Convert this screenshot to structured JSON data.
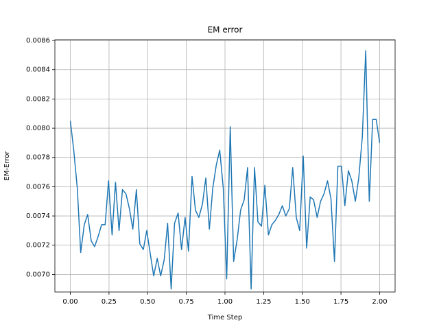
{
  "chart_data": {
    "type": "line",
    "title": "EM error",
    "x_label": "Time Step",
    "y_label": "EM-Error",
    "x": [
      0,
      0.022,
      0.045,
      0.067,
      0.09,
      0.112,
      0.135,
      0.157,
      0.18,
      0.202,
      0.225,
      0.247,
      0.27,
      0.292,
      0.315,
      0.337,
      0.36,
      0.382,
      0.404,
      0.427,
      0.449,
      0.472,
      0.494,
      0.517,
      0.539,
      0.562,
      0.584,
      0.607,
      0.629,
      0.652,
      0.674,
      0.697,
      0.719,
      0.742,
      0.764,
      0.787,
      0.809,
      0.831,
      0.854,
      0.876,
      0.899,
      0.921,
      0.944,
      0.966,
      0.989,
      1.011,
      1.034,
      1.056,
      1.079,
      1.101,
      1.124,
      1.146,
      1.169,
      1.191,
      1.213,
      1.236,
      1.258,
      1.281,
      1.303,
      1.326,
      1.348,
      1.371,
      1.393,
      1.416,
      1.438,
      1.461,
      1.483,
      1.506,
      1.528,
      1.551,
      1.573,
      1.596,
      1.618,
      1.64,
      1.663,
      1.685,
      1.708,
      1.73,
      1.753,
      1.775,
      1.798,
      1.82,
      1.843,
      1.865,
      1.888,
      1.91,
      1.933,
      1.955,
      1.978,
      2.0
    ],
    "series": [
      {
        "name": "EM error",
        "color": "#1f77b4",
        "values": [
          0.00805,
          0.00785,
          0.00759,
          0.00715,
          0.00734,
          0.00741,
          0.00723,
          0.00719,
          0.00726,
          0.00734,
          0.00734,
          0.00764,
          0.00727,
          0.00763,
          0.0073,
          0.00758,
          0.00755,
          0.00745,
          0.00731,
          0.00758,
          0.00721,
          0.00717,
          0.0073,
          0.00714,
          0.00699,
          0.00711,
          0.00699,
          0.0071,
          0.00735,
          0.0069,
          0.00735,
          0.00742,
          0.00717,
          0.00739,
          0.00716,
          0.00767,
          0.00744,
          0.00739,
          0.00748,
          0.00766,
          0.00731,
          0.00759,
          0.00775,
          0.00785,
          0.00759,
          0.00697,
          0.00801,
          0.00709,
          0.00724,
          0.00744,
          0.00751,
          0.00773,
          0.0069,
          0.00773,
          0.00736,
          0.00733,
          0.00761,
          0.00727,
          0.00734,
          0.00737,
          0.00741,
          0.00747,
          0.0074,
          0.00745,
          0.00773,
          0.00739,
          0.0073,
          0.00781,
          0.00718,
          0.00753,
          0.00751,
          0.00739,
          0.0075,
          0.00755,
          0.00764,
          0.00752,
          0.00709,
          0.00774,
          0.00774,
          0.00747,
          0.00771,
          0.00764,
          0.0075,
          0.00766,
          0.00794,
          0.00853,
          0.0075,
          0.00806,
          0.00806,
          0.0079
        ]
      }
    ],
    "xlim": [
      -0.1,
      2.1
    ],
    "ylim": [
      0.00688,
      0.008605
    ],
    "xticks": [
      {
        "value": 0,
        "label": "0.00"
      },
      {
        "value": 0.25,
        "label": "0.25"
      },
      {
        "value": 0.5,
        "label": "0.50"
      },
      {
        "value": 0.75,
        "label": "0.75"
      },
      {
        "value": 1,
        "label": "1.00"
      },
      {
        "value": 1.25,
        "label": "1.25"
      },
      {
        "value": 1.5,
        "label": "1.50"
      },
      {
        "value": 1.75,
        "label": "1.75"
      },
      {
        "value": 2,
        "label": "2.00"
      }
    ],
    "yticks": [
      {
        "value": 0.007,
        "label": "0.0070"
      },
      {
        "value": 0.0072,
        "label": "0.0072"
      },
      {
        "value": 0.0074,
        "label": "0.0074"
      },
      {
        "value": 0.0076,
        "label": "0.0076"
      },
      {
        "value": 0.0078,
        "label": "0.0078"
      },
      {
        "value": 0.008,
        "label": "0.0080"
      },
      {
        "value": 0.0082,
        "label": "0.0082"
      },
      {
        "value": 0.0084,
        "label": "0.0084"
      },
      {
        "value": 0.0086,
        "label": "0.0086"
      }
    ],
    "grid": true
  }
}
